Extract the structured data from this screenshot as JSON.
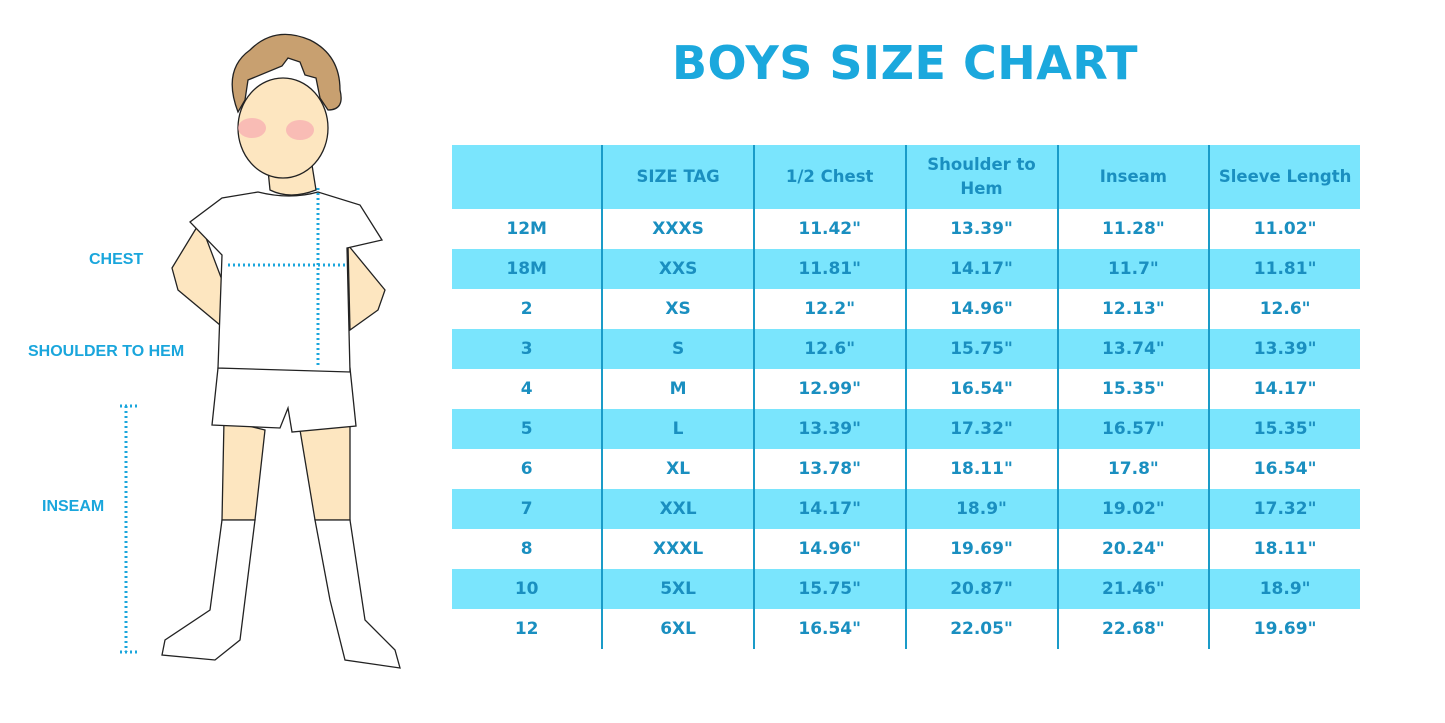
{
  "title": "BOYS SIZE CHART",
  "measure_labels": {
    "chest": "CHEST",
    "shoulder_to_hem": "SHOULDER TO HEM",
    "inseam": "INSEAM"
  },
  "colors": {
    "accent": "#1ba8dd",
    "header_bg": "#7ae5fd",
    "text": "#1a8fc0"
  },
  "table": {
    "headers": [
      "",
      "SIZE TAG",
      "1/2 Chest",
      "Shoulder to Hem",
      "Inseam",
      "Sleeve Length"
    ],
    "rows": [
      [
        "12M",
        "XXXS",
        "11.42\"",
        "13.39\"",
        "11.28\"",
        "11.02\""
      ],
      [
        "18M",
        "XXS",
        "11.81\"",
        "14.17\"",
        "11.7\"",
        "11.81\""
      ],
      [
        "2",
        "XS",
        "12.2\"",
        "14.96\"",
        "12.13\"",
        "12.6\""
      ],
      [
        "3",
        "S",
        "12.6\"",
        "15.75\"",
        "13.74\"",
        "13.39\""
      ],
      [
        "4",
        "M",
        "12.99\"",
        "16.54\"",
        "15.35\"",
        "14.17\""
      ],
      [
        "5",
        "L",
        "13.39\"",
        "17.32\"",
        "16.57\"",
        "15.35\""
      ],
      [
        "6",
        "XL",
        "13.78\"",
        "18.11\"",
        "17.8\"",
        "16.54\""
      ],
      [
        "7",
        "XXL",
        "14.17\"",
        "18.9\"",
        "19.02\"",
        "17.32\""
      ],
      [
        "8",
        "XXXL",
        "14.96\"",
        "19.69\"",
        "20.24\"",
        "18.11\""
      ],
      [
        "10",
        "5XL",
        "15.75\"",
        "20.87\"",
        "21.46\"",
        "18.9\""
      ],
      [
        "12",
        "6XL",
        "16.54\"",
        "22.05\"",
        "22.68\"",
        "19.69\""
      ]
    ]
  }
}
